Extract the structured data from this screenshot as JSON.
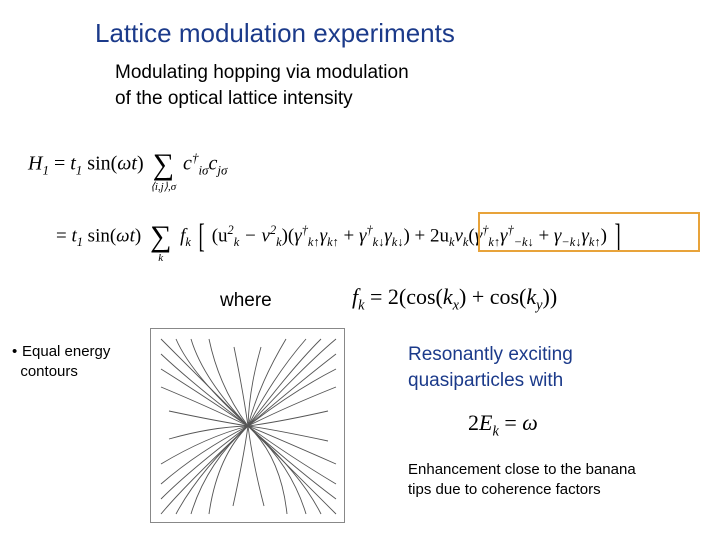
{
  "title": "Lattice modulation experiments",
  "subtitle_l1": "Modulating hopping via modulation",
  "subtitle_l2": "of the optical lattice intensity",
  "eq1": {
    "prefix": "H",
    "prefix_sub": "1",
    "t": "t",
    "t_sub": "1",
    "sin": " sin(",
    "omega": "ωt",
    "close": ")",
    "sum_under": "⟨i,j⟩,σ",
    "c1": "c",
    "c1_sup": "†",
    "c1_sub": "iσ",
    "c2": "c",
    "c2_sub": "jσ"
  },
  "eq2": {
    "eq": "= ",
    "t": "t",
    "t_sub": "1",
    "sin": " sin(",
    "omega": "ωt",
    "close": ")",
    "sum_under": "k",
    "fk": "f",
    "fk_sub": "k",
    "open_br": "[",
    "u2": "(u",
    "u2_sup": "2",
    "u2_sub": "k",
    "minus": " − v",
    "v2_sup": "2",
    "v2_sub": "k",
    "paren": ")(",
    "g1": "γ",
    "g1_sup": "†",
    "g1_sub": "k↑",
    "g2": "γ",
    "g2_sub": "k↑",
    "plus1": " + ",
    "g3": "γ",
    "g3_sup": "†",
    "g3_sub": "k↓",
    "g4": "γ",
    "g4_sub": "k↓",
    "close_p": ")",
    "plus2": " + 2u",
    "uk_sub": "k",
    "vk": "v",
    "vk_sub": "k",
    "open2": "(",
    "h1": "γ",
    "h1_sup": "†",
    "h1_sub": "k↑",
    "h2": "γ",
    "h2_sup": "†",
    "h2_sub": "−k↓",
    "plus3": " + ",
    "h3": "γ",
    "h3_sub": "−k↓",
    "h4": "γ",
    "h4_sub": "k↑",
    "close2": ")",
    "close_br": "]"
  },
  "where": "where",
  "fk_def": {
    "f": "f",
    "f_sub": "k",
    "eq": " = 2(cos(",
    "kx": "k",
    "kx_sub": "x",
    "mid": ") + cos(",
    "ky": "k",
    "ky_sub": "y",
    "end": "))"
  },
  "bullet_l1": "Equal energy",
  "bullet_l2": "contours",
  "resonant_l1": "Resonantly exciting",
  "resonant_l2": "quasiparticles with",
  "ek": {
    "two": "2",
    "E": "E",
    "E_sub": "k",
    "eq": " = ",
    "omega": "ω"
  },
  "enhance_l1": "Enhancement close to the banana",
  "enhance_l2": "tips due to coherence factors",
  "contour": {
    "stroke": "#555555",
    "stroke_width": 0.9,
    "bg": "#ffffff",
    "curves": [
      "M 10 185 Q 35 155 97 97 Q 155 35 185 10",
      "M 10 170 Q 40 140 97 97 Q 140 40 170 10",
      "M 10 155 Q 48 122 97 97 Q 122 48 155 10",
      "M 10 135 Q 55 108 97 97 Q 108 55 135 10",
      "M 18 110 Q 60 98 97 97 Q 98 60 110 18",
      "M 185 185 Q 155 155 97 97 Q 35 35 10 10",
      "M 185 170 Q 145 140 97 97 Q 40 45 25 10",
      "M 185 155 Q 135 125 97 97 Q 52 50 40 10",
      "M 185 135 Q 128 110 97 97 Q 68 58 58 10",
      "M 177 112 Q 120 100 97 97 Q 92 62 83 18",
      "M 10 25 Q 42 55 97 97 Q 150 145 170 185",
      "M 10 40 Q 50 65 97 97 Q 140 135 155 185",
      "M 10 58 Q 58 78 97 97 Q 130 128 136 185",
      "M 18 82 Q 65 92 97 97 Q 102 135 113 177",
      "M 185 25 Q 150 52 97 97 Q 48 142 25 185",
      "M 185 40 Q 142 62 97 97 Q 55 135 40 185",
      "M 185 58 Q 135 78 97 97 Q 66 128 58 185",
      "M 177 82 Q 128 93 97 97 Q 92 132 82 177"
    ]
  }
}
